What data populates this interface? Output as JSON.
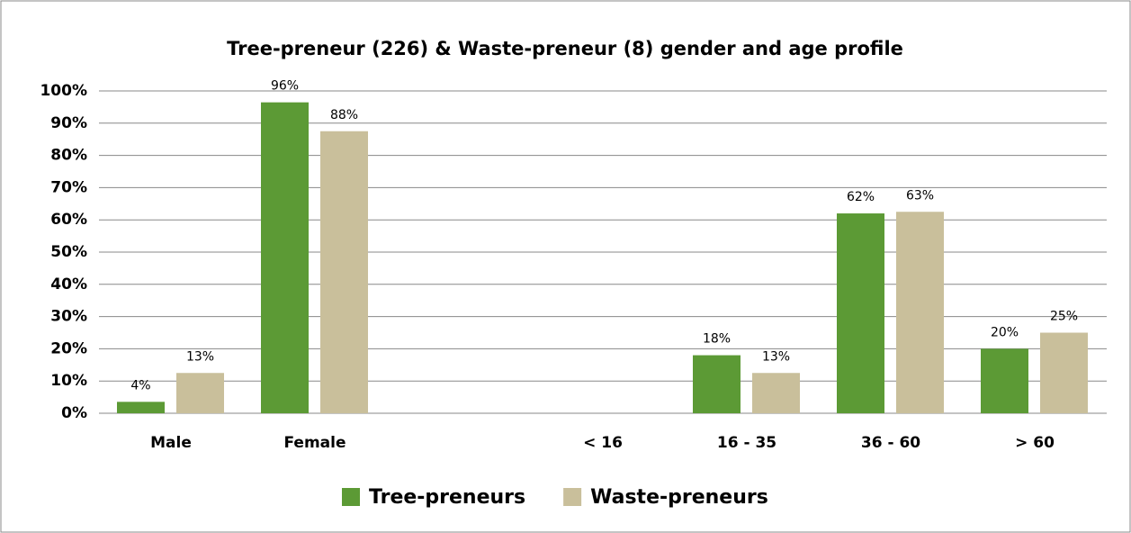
{
  "chart_data": {
    "type": "bar",
    "title": "Tree-preneur (226) & Waste-preneur (8) gender and age profile",
    "categories": [
      "Male",
      "Female",
      null,
      "< 16",
      "16 - 35",
      "36 - 60",
      "> 60"
    ],
    "series": [
      {
        "name": "Tree-preneurs",
        "color": "#5c9a35",
        "values": [
          3.54,
          96.46,
          null,
          null,
          18,
          62,
          20
        ],
        "value_labels": [
          "4%",
          "96%",
          null,
          null,
          "18%",
          "62%",
          "20%"
        ]
      },
      {
        "name": "Waste-preneurs",
        "color": "#c9bf9b",
        "values": [
          12.5,
          87.5,
          null,
          null,
          12.5,
          62.5,
          25
        ],
        "value_labels": [
          "13%",
          "88%",
          null,
          null,
          "13%",
          "63%",
          "25%"
        ]
      }
    ],
    "ylim": [
      0,
      100
    ],
    "yticks": [
      {
        "value": 0,
        "label": "0%"
      },
      {
        "value": 10,
        "label": "10%"
      },
      {
        "value": 20,
        "label": "20%"
      },
      {
        "value": 30,
        "label": "30%"
      },
      {
        "value": 40,
        "label": "40%"
      },
      {
        "value": 50,
        "label": "50%"
      },
      {
        "value": 60,
        "label": "60%"
      },
      {
        "value": 70,
        "label": "70%"
      },
      {
        "value": 80,
        "label": "80%"
      },
      {
        "value": 90,
        "label": "90%"
      },
      {
        "value": 100,
        "label": "100%"
      }
    ],
    "grid": true,
    "legend": "bottom"
  }
}
